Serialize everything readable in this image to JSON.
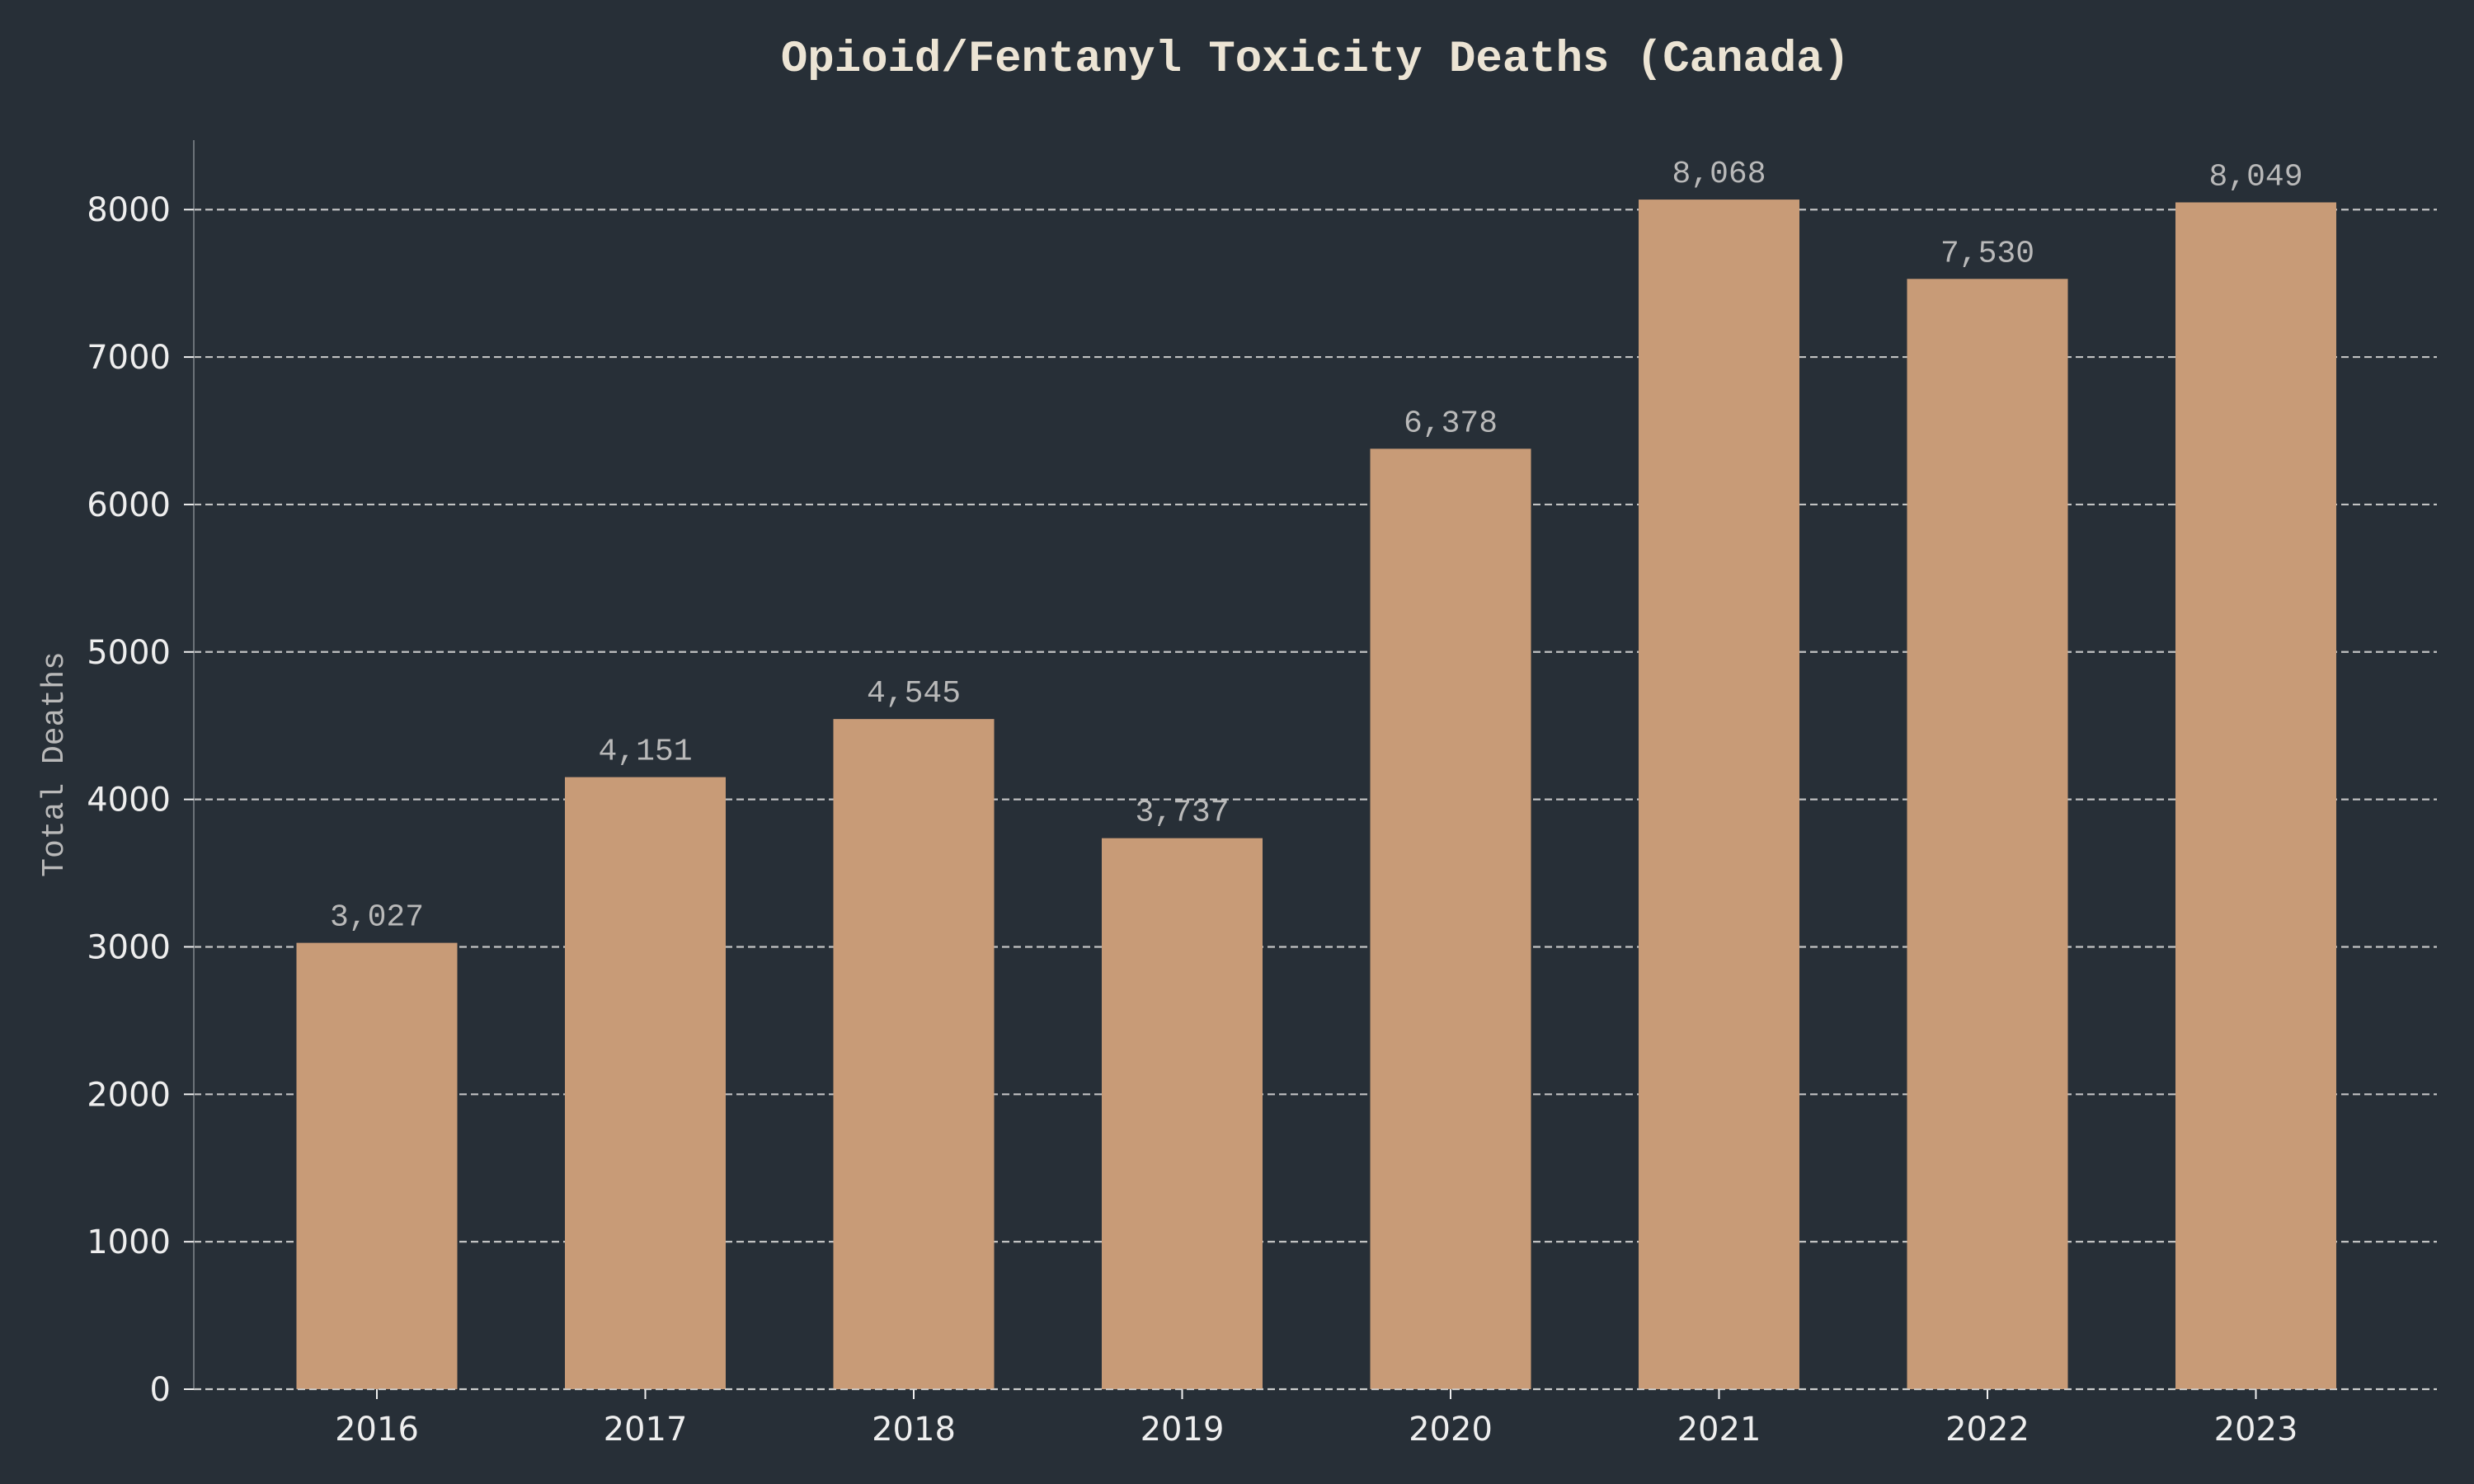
{
  "colors": {
    "background": "#272f37",
    "bar": "#c89b77",
    "text": "#eeeeee",
    "title": "#ece4d4",
    "muted": "#b9b9b9",
    "grid": "#d2d2d2",
    "axis": "#6b7278"
  },
  "chart_data": {
    "type": "bar",
    "title": "Opioid/Fentanyl Toxicity Deaths (Canada)",
    "xlabel": "",
    "ylabel": "Total Deaths",
    "categories": [
      "2016",
      "2017",
      "2018",
      "2019",
      "2020",
      "2021",
      "2022",
      "2023"
    ],
    "values": [
      3027,
      4151,
      4545,
      3737,
      6378,
      8068,
      7530,
      8049
    ],
    "value_labels": [
      "3,027",
      "4,151",
      "4,545",
      "3,737",
      "6,378",
      "8,068",
      "7,530",
      "8,049"
    ],
    "yticks": [
      0,
      1000,
      2000,
      3000,
      4000,
      5000,
      6000,
      7000,
      8000
    ],
    "ytick_labels": [
      "0",
      "1000",
      "2000",
      "3000",
      "4000",
      "5000",
      "6000",
      "7000",
      "8000"
    ],
    "ylim": [
      0,
      8471
    ],
    "grid": "horizontal dashed",
    "legend": "none"
  }
}
